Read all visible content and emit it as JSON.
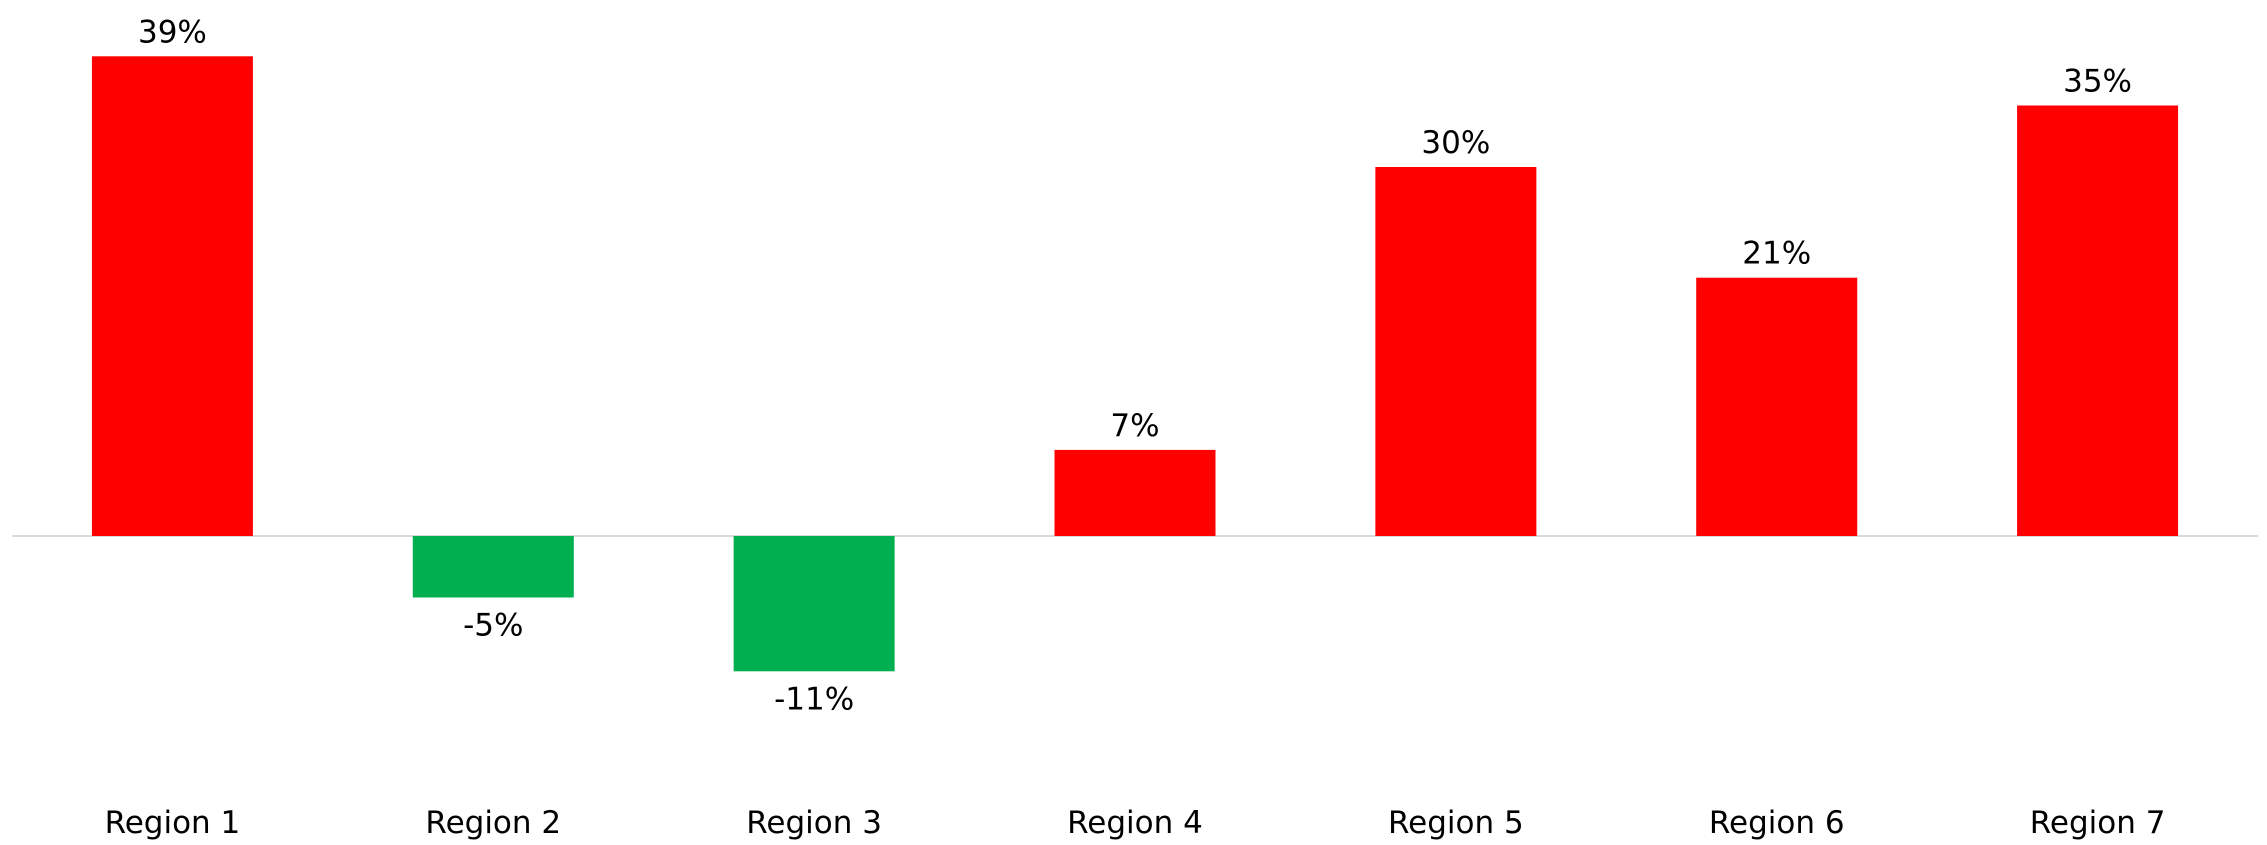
{
  "chart_data": {
    "type": "bar",
    "categories": [
      "Region 1",
      "Region 2",
      "Region 3",
      "Region 4",
      "Region 5",
      "Region 6",
      "Region 7"
    ],
    "values": [
      39,
      -5,
      -11,
      7,
      30,
      21,
      35
    ],
    "data_labels": [
      "39%",
      "-5%",
      "-11%",
      "7%",
      "30%",
      "21%",
      "35%"
    ],
    "value_unit": "%",
    "title": "",
    "xlabel": "",
    "ylabel": "",
    "ylim": [
      -11,
      39
    ],
    "grid": false,
    "legend": "none",
    "colors": {
      "positive": "#ff0000",
      "negative": "#00b050",
      "zero_line": "#d9d9d9",
      "text": "#000000"
    }
  }
}
